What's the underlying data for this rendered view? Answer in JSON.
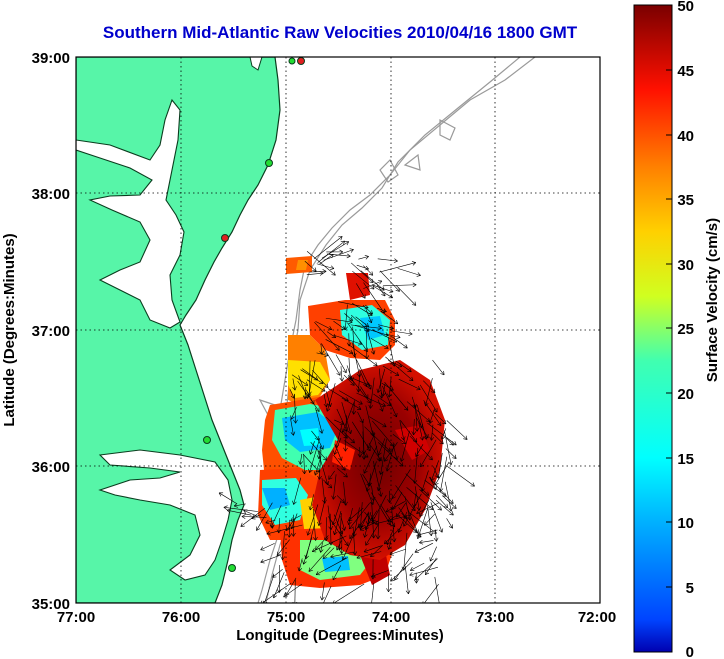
{
  "title": "Southern Mid-Atlantic Raw Velocities 2010/04/16 1800 GMT",
  "axes": {
    "xlabel": "Longitude (Degrees:Minutes)",
    "ylabel": "Latitude (Degrees:Minutes)",
    "x_ticks": [
      "77:00",
      "76:00",
      "75:00",
      "74:00",
      "73:00",
      "72:00"
    ],
    "y_ticks": [
      "39:00",
      "38:00",
      "37:00",
      "36:00",
      "35:00"
    ],
    "xlim_deg_west": [
      77,
      72
    ],
    "ylim_deg_north": [
      35,
      39
    ],
    "grid": "dotted"
  },
  "colorbar": {
    "label": "Surface Velocity (cm/s)",
    "ticks": [
      "50",
      "45",
      "40",
      "35",
      "30",
      "25",
      "20",
      "15",
      "10",
      "5",
      "0"
    ],
    "range": [
      0,
      50
    ],
    "colormap": "jet"
  },
  "colors": {
    "land": "#57f5a8",
    "coast": "#0a3d1e",
    "bathymetry": "#9a9a9a",
    "title": "#0000cc",
    "vectors": "#000000",
    "site_green": "#22dd33",
    "site_red": "#e02020"
  }
}
